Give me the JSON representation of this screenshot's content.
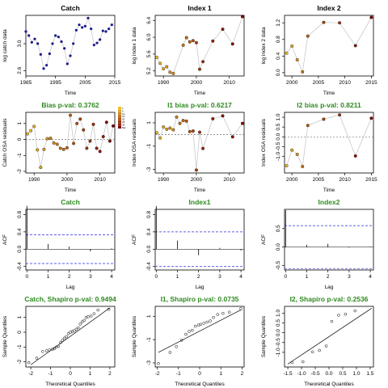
{
  "colors": {
    "title_green": "#2e8b1f",
    "ci_blue": "#2b2bdf",
    "series_gray": "#b8b8b8",
    "zero_line": "#555555"
  },
  "chart_data": [
    {
      "id": "p1",
      "type": "scatter",
      "title": "Catch",
      "title_color": "black",
      "xlabel": "Time",
      "ylabel": "log catch data",
      "xlim": [
        1985,
        2015
      ],
      "ylim": [
        2.52,
        3.42
      ],
      "xticks": [
        1985,
        1995,
        2005,
        2015
      ],
      "yticks": [
        2.6,
        3.0
      ],
      "x": [
        1985,
        1986,
        1987,
        1988,
        1989,
        1990,
        1991,
        1992,
        1993,
        1994,
        1995,
        1996,
        1997,
        1998,
        1999,
        2000,
        2001,
        2002,
        2003,
        2004,
        2005,
        2006,
        2007,
        2008,
        2009,
        2010,
        2011,
        2012,
        2013,
        2014
      ],
      "y": [
        3.18,
        3.12,
        3.02,
        3.07,
        3.0,
        2.84,
        2.63,
        2.68,
        2.85,
        3.0,
        3.12,
        3.1,
        3.03,
        2.93,
        2.7,
        2.82,
        3.0,
        3.2,
        3.28,
        3.24,
        3.26,
        3.38,
        3.22,
        2.98,
        3.01,
        3.06,
        3.19,
        3.18,
        3.22,
        3.28
      ]
    },
    {
      "id": "p2",
      "type": "scatter",
      "title": "Index 1",
      "title_color": "black",
      "xlabel": "Time",
      "ylabel": "log index 1 data",
      "xlim": [
        1987.5,
        2014.5
      ],
      "ylim": [
        5.08,
        6.52
      ],
      "xticks": [
        1990,
        2000,
        2010
      ],
      "yticks": [
        5.2,
        5.6,
        6.0,
        6.4
      ],
      "x": [
        1988,
        1989,
        1990,
        1991,
        1992,
        1993,
        1996,
        1997,
        1998,
        1999,
        2000,
        2001,
        2002,
        2005,
        2008,
        2011,
        2014
      ],
      "y": [
        5.52,
        5.38,
        5.25,
        5.3,
        5.17,
        5.14,
        5.81,
        5.99,
        5.89,
        5.92,
        5.87,
        5.24,
        5.42,
        5.91,
        6.19,
        5.84,
        6.49
      ]
    },
    {
      "id": "p3",
      "type": "scatter",
      "title": "Index 2",
      "title_color": "black",
      "xlabel": "Time",
      "ylabel": "log index 2 data",
      "xlim": [
        1998.6,
        2015.4
      ],
      "ylim": [
        -0.08,
        1.38
      ],
      "xticks": [
        2000,
        2005,
        2010,
        2015
      ],
      "yticks": [
        0.0,
        0.4,
        0.8,
        1.2
      ],
      "x": [
        1999,
        2000,
        2001,
        2002,
        2003,
        2006,
        2009,
        2012,
        2015
      ],
      "y": [
        0.47,
        0.64,
        0.31,
        0.02,
        0.88,
        1.21,
        1.2,
        0.65,
        1.33
      ]
    },
    {
      "id": "p4",
      "type": "scatter",
      "title": "Bias p-val: 0.3762",
      "title_color": "green",
      "xlabel": "Time",
      "ylabel": "Catch OSA residuals",
      "xlim": [
        1987.5,
        2014.5
      ],
      "ylim": [
        -2.1,
        1.7
      ],
      "xticks": [
        1990,
        2000,
        2010
      ],
      "yticks": [
        -2,
        -1,
        0,
        1
      ],
      "zero_line": true,
      "x": [
        1988,
        1989,
        1990,
        1991,
        1992,
        1993,
        1994,
        1995,
        1996,
        1997,
        1998,
        1999,
        2000,
        2001,
        2002,
        2003,
        2004,
        2005,
        2006,
        2007,
        2008,
        2009,
        2010,
        2011,
        2012,
        2013,
        2014
      ],
      "y": [
        0.35,
        0.55,
        0.82,
        -0.65,
        -1.75,
        -0.62,
        0.05,
        0.08,
        -0.22,
        -0.3,
        -0.55,
        -0.62,
        -0.52,
        1.52,
        -0.25,
        1.0,
        1.28,
        0.6,
        -0.55,
        -0.1,
        0.95,
        -0.55,
        -0.75,
        0.18,
        1.08,
        -0.1,
        0.85
      ],
      "legend": {
        "type": "gradient",
        "entries": [
          "1",
          "5",
          "10",
          "15",
          "20",
          "25",
          "30",
          "Bar"
        ]
      }
    },
    {
      "id": "p5",
      "type": "scatter",
      "title": "I1 bias p-val: 0.6217",
      "title_color": "green",
      "xlabel": "Time",
      "ylabel": "Index OSA residuals",
      "xlim": [
        1987.5,
        2014.5
      ],
      "ylim": [
        -3.3,
        1.9
      ],
      "xticks": [
        1990,
        2000,
        2010
      ],
      "yticks": [
        -3,
        -1,
        1
      ],
      "zero_line": true,
      "x": [
        1988,
        1989,
        1990,
        1991,
        1992,
        1993,
        1994,
        1995,
        1996,
        1997,
        1998,
        1999,
        2000,
        2001,
        2002,
        2005,
        2008,
        2011,
        2014
      ],
      "y": [
        0.15,
        -0.3,
        0.65,
        0.45,
        0.55,
        0.4,
        1.5,
        0.95,
        1.2,
        1.15,
        0.25,
        0.3,
        -3.05,
        0.2,
        -1.2,
        1.35,
        1.6,
        -0.2,
        0.95
      ]
    },
    {
      "id": "p6",
      "type": "scatter",
      "title": "I2 bias p-val: 0.8211",
      "title_color": "green",
      "xlabel": "Time",
      "ylabel": "Index OSA residuals",
      "xlim": [
        1998.6,
        2015.4
      ],
      "ylim": [
        -1.85,
        1.25
      ],
      "xticks": [
        2000,
        2005,
        2010,
        2015
      ],
      "yticks": [
        -1.0,
        -0.5,
        0.0,
        0.5,
        1.0
      ],
      "zero_line": true,
      "x": [
        1999,
        2000,
        2001,
        2002,
        2003,
        2006,
        2009,
        2012,
        2015
      ],
      "y": [
        -1.48,
        -0.68,
        -0.9,
        -1.52,
        0.58,
        0.9,
        1.12,
        -0.98,
        0.95
      ]
    },
    {
      "id": "p7",
      "type": "bar",
      "title": "Catch",
      "title_color": "green",
      "xlabel": "Lag",
      "ylabel": "ACF",
      "xlim": [
        -0.05,
        4.15
      ],
      "ylim": [
        -0.48,
        0.92
      ],
      "xticks": [
        0,
        1,
        2,
        3,
        4
      ],
      "yticks": [
        -0.4,
        0.0,
        0.4,
        0.8
      ],
      "ci": 0.33,
      "x": [
        0,
        1,
        2,
        3,
        4
      ],
      "y": [
        1.0,
        0.12,
        0.06,
        -0.05,
        0.02
      ]
    },
    {
      "id": "p8",
      "type": "bar",
      "title": "Index1",
      "title_color": "green",
      "xlabel": "Lag",
      "ylabel": "ACF",
      "xlim": [
        -0.05,
        4.15
      ],
      "ylim": [
        -0.48,
        0.92
      ],
      "xticks": [
        0,
        1,
        2,
        3,
        4
      ],
      "yticks": [
        -0.4,
        0.0,
        0.4,
        0.8
      ],
      "ci": 0.4,
      "x": [
        0,
        1,
        2,
        3,
        4
      ],
      "y": [
        1.0,
        0.2,
        -0.14,
        0.03,
        -0.03
      ]
    },
    {
      "id": "p9",
      "type": "bar",
      "title": "Index2",
      "title_color": "green",
      "xlabel": "Lag",
      "ylabel": "ACF",
      "xlim": [
        -0.05,
        4.15
      ],
      "ylim": [
        -0.62,
        1.02
      ],
      "xticks": [
        0,
        1,
        2,
        3,
        4
      ],
      "yticks": [
        -0.5,
        0.0,
        0.5
      ],
      "ci": 0.58,
      "x": [
        0,
        1,
        2,
        3,
        4
      ],
      "y": [
        1.0,
        0.06,
        0.09,
        -0.02,
        0.01
      ]
    },
    {
      "id": "p10",
      "type": "qq",
      "title": "Catch, Shapiro p-val: 0.9494",
      "title_color": "green",
      "xlabel": "Theoretical Quantiles",
      "ylabel": "Sample Quantiles",
      "xlim": [
        -2.25,
        2.25
      ],
      "ylim": [
        -2.35,
        1.75
      ],
      "xticks": [
        -2,
        -1,
        0,
        1,
        2
      ],
      "yticks": [
        -2,
        -1,
        0,
        1
      ],
      "line": [
        [
          -2,
          -2.2
        ],
        [
          2,
          1.65
        ]
      ],
      "x": [
        -2.1,
        -1.7,
        -1.4,
        -1.2,
        -1.05,
        -0.9,
        -0.8,
        -0.7,
        -0.6,
        -0.5,
        -0.4,
        -0.3,
        -0.2,
        -0.1,
        0.0,
        0.1,
        0.2,
        0.3,
        0.4,
        0.5,
        0.6,
        0.7,
        0.8,
        0.9,
        1.05,
        1.2,
        1.4,
        1.95
      ],
      "y": [
        -2.05,
        -1.75,
        -1.3,
        -1.25,
        -1.2,
        -1.15,
        -1.1,
        -1.0,
        -0.95,
        -0.7,
        -0.55,
        -0.4,
        -0.3,
        -0.1,
        0.0,
        0.05,
        0.1,
        0.2,
        0.3,
        0.55,
        0.7,
        0.8,
        1.0,
        1.05,
        1.1,
        1.25,
        1.5,
        1.55
      ]
    },
    {
      "id": "p11",
      "type": "qq",
      "title": "I1, Shapiro p-val: 0.0735",
      "title_color": "green",
      "xlabel": "Theoretical Quantiles",
      "ylabel": "Sample Quantiles",
      "xlim": [
        -2.1,
        2.1
      ],
      "ylim": [
        -3.35,
        1.85
      ],
      "xticks": [
        -2,
        -1,
        0,
        1,
        2
      ],
      "yticks": [
        -3,
        -1,
        1
      ],
      "line": [
        [
          -1.95,
          -2.1
        ],
        [
          1.95,
          1.55
        ]
      ],
      "x": [
        -1.95,
        -1.4,
        -1.1,
        -0.85,
        -0.65,
        -0.5,
        -0.35,
        -0.2,
        -0.05,
        0.05,
        0.2,
        0.35,
        0.5,
        0.65,
        0.85,
        1.1,
        1.4,
        1.95
      ],
      "y": [
        -3.05,
        -2.1,
        -1.6,
        -1.05,
        -0.55,
        -0.3,
        -0.2,
        0.15,
        0.25,
        0.3,
        0.4,
        0.5,
        0.6,
        0.9,
        1.15,
        1.25,
        1.35,
        1.65
      ]
    },
    {
      "id": "p12",
      "type": "qq",
      "title": "I2, Shapiro p-val: 0.2536",
      "title_color": "green",
      "xlabel": "Theoretical Quantiles",
      "ylabel": "Sample Quantiles",
      "xlim": [
        -1.62,
        1.62
      ],
      "ylim": [
        -1.75,
        1.35
      ],
      "xticks": [
        -1.5,
        -1.0,
        -0.5,
        0.0,
        0.5,
        1.0,
        1.5
      ],
      "yticks": [
        -1.0,
        -0.5,
        0.0,
        0.5,
        1.0
      ],
      "line": [
        [
          -1.5,
          -1.6
        ],
        [
          1.55,
          1.25
        ]
      ],
      "x": [
        -1.35,
        -0.95,
        -0.6,
        -0.35,
        -0.1,
        0.1,
        0.35,
        0.6,
        0.95
      ],
      "y": [
        -1.52,
        -1.48,
        -0.98,
        -0.9,
        -0.68,
        0.58,
        0.9,
        0.95,
        1.12
      ]
    }
  ]
}
